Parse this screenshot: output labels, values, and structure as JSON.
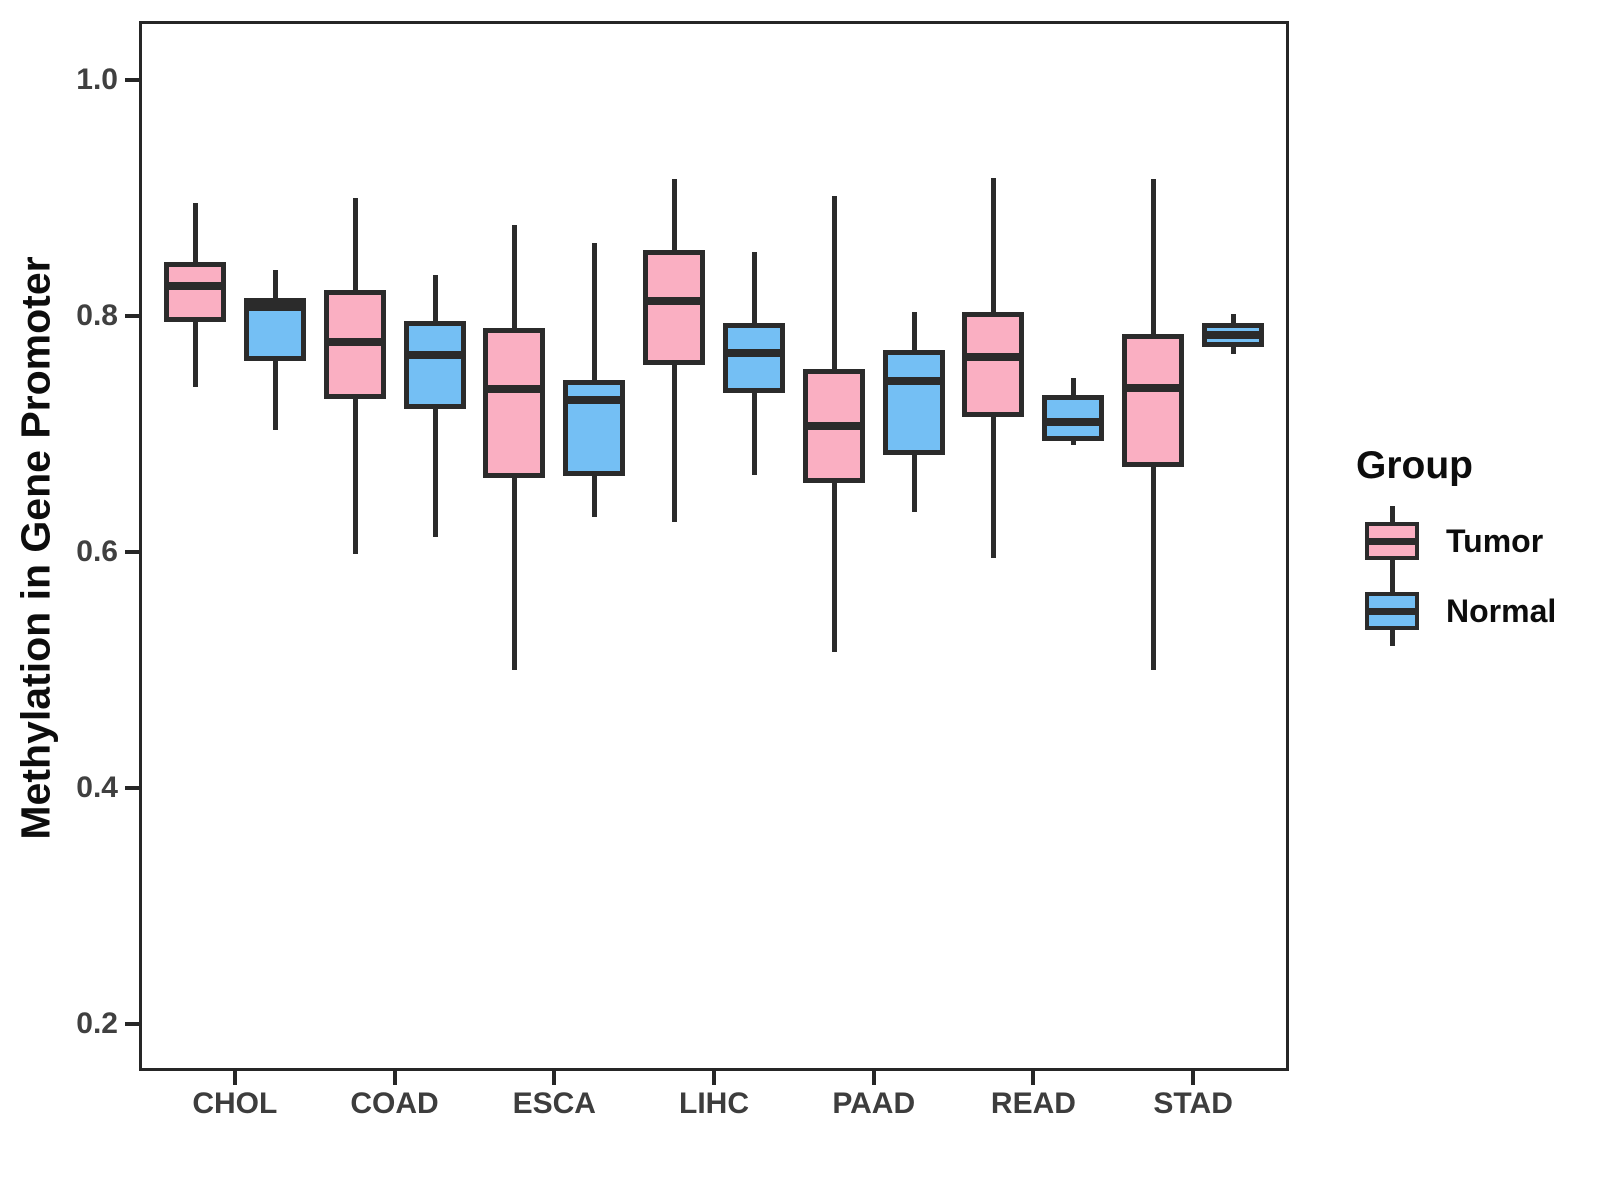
{
  "chart_data": {
    "type": "boxplot",
    "title": "",
    "xlabel": "",
    "ylabel": "Methylation in Gene Promoter",
    "categories": [
      "CHOL",
      "COAD",
      "ESCA",
      "LIHC",
      "PAAD",
      "READ",
      "STAD"
    ],
    "y_ticks": [
      1.0,
      0.8,
      0.6,
      0.4,
      0.2
    ],
    "ylim": [
      0.16,
      1.05
    ],
    "grid": "off",
    "legend_position": "right",
    "legend": {
      "title": "Group",
      "entries": [
        {
          "label": "Tumor",
          "color": "#FAAFC2"
        },
        {
          "label": "Normal",
          "color": "#74BFF4"
        }
      ]
    },
    "box_stats_order": [
      "whisker_low",
      "q1",
      "median",
      "q3",
      "whisker_high"
    ],
    "series": [
      {
        "name": "Tumor",
        "color": "#FAAFC2",
        "values": [
          [
            0.74,
            0.795,
            0.825,
            0.846,
            0.896
          ],
          [
            0.598,
            0.73,
            0.778,
            0.822,
            0.9
          ],
          [
            0.5,
            0.663,
            0.738,
            0.79,
            0.877
          ],
          [
            0.625,
            0.758,
            0.813,
            0.856,
            0.916
          ],
          [
            0.515,
            0.658,
            0.707,
            0.755,
            0.902
          ],
          [
            0.595,
            0.714,
            0.765,
            0.803,
            0.917
          ],
          [
            0.5,
            0.672,
            0.739,
            0.785,
            0.916
          ]
        ]
      },
      {
        "name": "Normal",
        "color": "#74BFF4",
        "values": [
          [
            0.703,
            0.762,
            0.808,
            0.815,
            0.839
          ],
          [
            0.613,
            0.721,
            0.767,
            0.796,
            0.835
          ],
          [
            0.63,
            0.664,
            0.729,
            0.746,
            0.862
          ],
          [
            0.665,
            0.735,
            0.769,
            0.794,
            0.854
          ],
          [
            0.634,
            0.682,
            0.745,
            0.771,
            0.803
          ],
          [
            0.691,
            0.694,
            0.71,
            0.733,
            0.747
          ],
          [
            0.768,
            0.774,
            0.784,
            0.794,
            0.802
          ]
        ]
      }
    ],
    "colors": {
      "line": "#2b2b2b",
      "panel_border": "#262626",
      "axis_text": "#404040",
      "background": "#ffffff"
    }
  }
}
